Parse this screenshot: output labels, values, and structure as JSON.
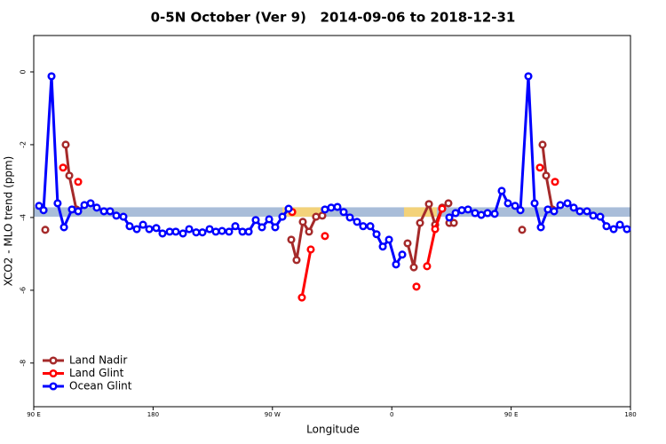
{
  "chart_data": {
    "type": "line",
    "title": "0-5N October (Ver 9)   2014-09-06 to 2018-12-31",
    "x_label": "Longitude",
    "y_label": "XCO2 - MLO trend (ppm)",
    "xlim": [
      90,
      540
    ],
    "ylim": [
      -9.2,
      1
    ],
    "xticks": [
      {
        "value": 90,
        "label": "90 E"
      },
      180,
      {
        "value": 270,
        "label": "90 W"
      },
      {
        "value": 360,
        "label": "0"
      },
      {
        "value": 450,
        "label": "90 E"
      },
      {
        "value": 540,
        "label": "180"
      }
    ],
    "yticks": [
      0,
      -2,
      -4,
      -6,
      -8
    ],
    "legend": "bottom-left",
    "band": {
      "y": -3.85,
      "half_height": 0.13,
      "segments": [
        {
          "from": 90,
          "to": 540,
          "color": "#a9bdd9"
        },
        {
          "from": 277.5,
          "to": 308.3,
          "color": "#f3d27a"
        },
        {
          "from": 369.2,
          "to": 394,
          "color": "#f3d27a"
        }
      ]
    },
    "series": [
      {
        "name": "Land Nadir",
        "color": "#a52a2a",
        "x": [
          98.7,
          null,
          114.1,
          116.8,
          122.1,
          null,
          284.2,
          288.2,
          292.9,
          297.6,
          302.9,
          307.6,
          null,
          371.9,
          376.6,
          381.3,
          388,
          392.7,
          398,
          402.7,
          null,
          403.4,
          406.8,
          null,
          458.3,
          null,
          473.7,
          476.4,
          481.1
        ],
        "values": [
          -4.34,
          null,
          -2.0,
          -2.85,
          -3.78,
          null,
          -4.61,
          -5.17,
          -4.12,
          -4.39,
          -3.98,
          -3.95,
          null,
          -4.71,
          -5.37,
          -4.15,
          -3.63,
          -4.2,
          -3.73,
          -3.61,
          null,
          -4.15,
          -4.15,
          null,
          -4.34,
          null,
          -2.0,
          -2.85,
          -3.78
        ]
      },
      {
        "name": "Land Glint",
        "color": "#ff0000",
        "x": [
          112.1,
          null,
          123.5,
          null,
          284.9,
          null,
          292.2,
          298.9,
          null,
          309.6,
          null,
          378.6,
          null,
          386.6,
          392.7,
          398,
          null,
          471.7,
          null,
          483.1
        ],
        "values": [
          -2.63,
          null,
          -3.02,
          null,
          -3.85,
          null,
          -6.2,
          -4.88,
          null,
          -4.51,
          null,
          -5.9,
          null,
          -5.34,
          -4.32,
          -3.76,
          null,
          -2.63,
          null,
          -3.02
        ]
      },
      {
        "name": "Ocean Glint",
        "color": "#0000ff",
        "x": [
          94,
          97.4,
          103.4,
          108,
          112.8,
          118.8,
          123.5,
          128.2,
          132.9,
          137.5,
          142.9,
          147.6,
          152.3,
          157.6,
          162.3,
          167.7,
          172.4,
          177.1,
          182.4,
          187.1,
          192.5,
          197.1,
          202.5,
          207.2,
          212.5,
          217.2,
          222.6,
          227.3,
          232,
          237.3,
          242,
          247.4,
          252.1,
          257.4,
          262.1,
          267.5,
          272.1,
          277.5,
          282.2,
          null,
          309.6,
          314.3,
          319,
          323.7,
          328.4,
          333.8,
          338.4,
          343.8,
          348.5,
          353.2,
          357.9,
          363.2,
          367.9,
          null,
          403.4,
          408.1,
          412.8,
          417.5,
          422.8,
          427.5,
          432.2,
          437.6,
          442.9,
          447.6,
          453,
          457,
          463,
          467.7,
          472.4,
          477.7,
          482.4,
          487.1,
          492.5,
          497.2,
          501.8,
          507.2,
          511.9,
          517.2,
          521.9,
          527.3,
          532,
          537.3
        ],
        "values": [
          -3.68,
          -3.8,
          -0.12,
          -3.61,
          -4.27,
          -3.78,
          -3.83,
          -3.66,
          -3.61,
          -3.73,
          -3.83,
          -3.83,
          -3.95,
          -3.98,
          -4.24,
          -4.32,
          -4.2,
          -4.32,
          -4.29,
          -4.44,
          -4.39,
          -4.39,
          -4.44,
          -4.32,
          -4.41,
          -4.41,
          -4.32,
          -4.39,
          -4.37,
          -4.39,
          -4.24,
          -4.39,
          -4.39,
          -4.07,
          -4.27,
          -4.05,
          -4.27,
          -3.98,
          -3.76,
          null,
          -3.78,
          -3.73,
          -3.71,
          -3.85,
          -4.0,
          -4.12,
          -4.24,
          -4.24,
          -4.46,
          -4.8,
          -4.61,
          -5.29,
          -5.02,
          null,
          -4.0,
          -3.88,
          -3.8,
          -3.78,
          -3.88,
          -3.93,
          -3.88,
          -3.9,
          -3.27,
          -3.61,
          -3.68,
          -3.8,
          -0.12,
          -3.61,
          -4.27,
          -3.78,
          -3.83,
          -3.66,
          -3.61,
          -3.73,
          -3.83,
          -3.83,
          -3.95,
          -3.98,
          -4.24,
          -4.32,
          -4.2,
          -4.32
        ]
      }
    ]
  }
}
